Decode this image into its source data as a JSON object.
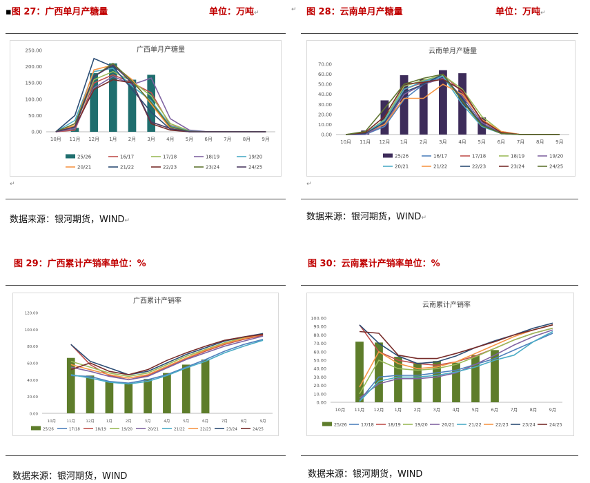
{
  "figures": [
    {
      "fig_label": "图 27：广西单月产糖量",
      "unit": "单位：万吨",
      "source": "数据来源：银河期货，WIND"
    },
    {
      "fig_label": "图 28：云南单月产糖量",
      "unit": "单位：万吨",
      "source": "数据来源：银河期货，WIND"
    },
    {
      "fig_label": "图 29：广西累计产销率单位：%",
      "unit": "",
      "source": "数据来源：银河期货，WIND"
    },
    {
      "fig_label": "图 30：云南累计产销率单位：%",
      "unit": "",
      "source": "数据来源：银河期货，WIND"
    }
  ],
  "chart_data": [
    {
      "type": "bar",
      "title": "广西单月产糖量",
      "categories": [
        "10月",
        "11月",
        "12月",
        "1月",
        "2月",
        "3月",
        "4月",
        "5月",
        "6月",
        "7月",
        "8月",
        "9月"
      ],
      "ylim": [
        0,
        250
      ],
      "yticks": [
        "0.00",
        "50.00",
        "100.00",
        "150.00",
        "200.00",
        "250.00"
      ],
      "bar_series": {
        "name": "25/26",
        "color": "#1f6e6e",
        "values": [
          0,
          12,
          180,
          210,
          160,
          175,
          null,
          null,
          null,
          null,
          null,
          null
        ]
      },
      "line_series": [
        {
          "name": "16/17",
          "color": "#c0504d",
          "values": [
            0,
            5,
            150,
            175,
            150,
            120,
            20,
            2,
            0,
            0,
            0,
            0
          ]
        },
        {
          "name": "17/18",
          "color": "#9bbb59",
          "values": [
            0,
            18,
            160,
            185,
            155,
            110,
            25,
            3,
            0,
            0,
            0,
            0
          ]
        },
        {
          "name": "18/19",
          "color": "#8064a2",
          "values": [
            0,
            10,
            135,
            170,
            145,
            165,
            40,
            5,
            0,
            0,
            0,
            0
          ]
        },
        {
          "name": "19/20",
          "color": "#4bacc6",
          "values": [
            0,
            35,
            185,
            195,
            140,
            95,
            18,
            2,
            0,
            0,
            0,
            0
          ]
        },
        {
          "name": "20/21",
          "color": "#f79646",
          "values": [
            0,
            20,
            190,
            205,
            160,
            85,
            10,
            1,
            0,
            0,
            0,
            0
          ]
        },
        {
          "name": "21/22",
          "color": "#2c4d75",
          "values": [
            0,
            50,
            225,
            200,
            130,
            60,
            8,
            0,
            0,
            0,
            0,
            0
          ]
        },
        {
          "name": "22/23",
          "color": "#772c2a",
          "values": [
            0,
            15,
            130,
            160,
            150,
            25,
            5,
            0,
            0,
            0,
            0,
            0
          ]
        },
        {
          "name": "23/24",
          "color": "#5f7530",
          "values": [
            0,
            25,
            170,
            210,
            155,
            90,
            15,
            1,
            0,
            0,
            0,
            0
          ]
        },
        {
          "name": "24/25",
          "color": "#4d3b62",
          "values": [
            0,
            15,
            170,
            205,
            150,
            30,
            10,
            0,
            0,
            0,
            0,
            0
          ]
        }
      ]
    },
    {
      "type": "bar",
      "title": "云南单月产糖量",
      "categories": [
        "10月",
        "11月",
        "12月",
        "1月",
        "2月",
        "3月",
        "4月",
        "5月",
        "6月",
        "7月",
        "8月",
        "9月"
      ],
      "ylim": [
        0,
        70
      ],
      "yticks": [
        "0.00",
        "10.00",
        "20.00",
        "30.00",
        "40.00",
        "50.00",
        "60.00",
        "70.00"
      ],
      "bar_series": {
        "name": "25/26",
        "color": "#3d2c5a",
        "values": [
          0,
          4,
          34,
          59,
          55,
          64,
          61,
          17,
          null,
          null,
          null,
          null
        ]
      },
      "line_series": [
        {
          "name": "16/17",
          "color": "#4f81bd",
          "values": [
            0,
            0,
            8,
            35,
            50,
            58,
            35,
            10,
            1,
            0,
            0,
            0
          ]
        },
        {
          "name": "17/18",
          "color": "#c0504d",
          "values": [
            0,
            1,
            12,
            45,
            52,
            60,
            42,
            14,
            2,
            0,
            0,
            0
          ]
        },
        {
          "name": "18/19",
          "color": "#9bbb59",
          "values": [
            0,
            1,
            15,
            48,
            54,
            59,
            45,
            18,
            3,
            0,
            0,
            0
          ]
        },
        {
          "name": "19/20",
          "color": "#8064a2",
          "values": [
            0,
            0,
            10,
            40,
            50,
            56,
            38,
            12,
            1,
            0,
            0,
            0
          ]
        },
        {
          "name": "20/21",
          "color": "#4bacc6",
          "values": [
            0,
            1,
            14,
            45,
            53,
            58,
            30,
            8,
            1,
            0,
            0,
            0
          ]
        },
        {
          "name": "21/22",
          "color": "#f79646",
          "values": [
            0,
            2,
            10,
            36,
            36,
            50,
            40,
            15,
            3,
            0,
            0,
            0
          ]
        },
        {
          "name": "22/23",
          "color": "#2c4d75",
          "values": [
            0,
            1,
            12,
            42,
            50,
            60,
            35,
            10,
            1,
            0,
            0,
            0
          ]
        },
        {
          "name": "23/24",
          "color": "#772c2a",
          "values": [
            0,
            2,
            18,
            50,
            52,
            55,
            44,
            14,
            2,
            0,
            0,
            0
          ]
        },
        {
          "name": "24/25",
          "color": "#5f7530",
          "values": [
            0,
            3,
            26,
            50,
            56,
            60,
            33,
            9,
            1,
            0,
            0,
            0
          ]
        }
      ]
    },
    {
      "type": "bar",
      "title": "广西累计产销率",
      "categories": [
        "10月",
        "11月",
        "12月",
        "1月",
        "2月",
        "3月",
        "4月",
        "5月",
        "6月",
        "7月",
        "8月",
        "9月"
      ],
      "ylim": [
        0,
        120
      ],
      "yticks": [
        "0.00",
        "20.00",
        "40.00",
        "60.00",
        "80.00",
        "100.00",
        "120.00"
      ],
      "bar_series": {
        "name": "25/26",
        "color": "#5e7d2b",
        "values": [
          null,
          66,
          45,
          38,
          35,
          41,
          48,
          58,
          64,
          null,
          null,
          null
        ]
      },
      "line_series": [
        {
          "name": "17/18",
          "color": "#4f81bd",
          "values": [
            null,
            45,
            44,
            38,
            36,
            40,
            46,
            55,
            64,
            74,
            82,
            88
          ]
        },
        {
          "name": "18/19",
          "color": "#c0504d",
          "values": [
            null,
            82,
            58,
            45,
            40,
            45,
            55,
            65,
            74,
            82,
            88,
            93
          ]
        },
        {
          "name": "19/20",
          "color": "#9bbb59",
          "values": [
            null,
            62,
            55,
            48,
            44,
            48,
            58,
            68,
            76,
            84,
            90,
            95
          ]
        },
        {
          "name": "20/21",
          "color": "#8064a2",
          "values": [
            null,
            55,
            50,
            44,
            40,
            44,
            54,
            64,
            72,
            80,
            86,
            92
          ]
        },
        {
          "name": "21/22",
          "color": "#4bacc6",
          "values": [
            null,
            46,
            42,
            37,
            35,
            38,
            45,
            54,
            62,
            72,
            80,
            87
          ]
        },
        {
          "name": "22/23",
          "color": "#f79646",
          "values": [
            null,
            58,
            52,
            46,
            42,
            46,
            56,
            66,
            75,
            83,
            89,
            94
          ]
        },
        {
          "name": "23/24",
          "color": "#2c4d75",
          "values": [
            null,
            82,
            62,
            54,
            46,
            50,
            60,
            70,
            78,
            86,
            91,
            95
          ]
        },
        {
          "name": "24/25",
          "color": "#772c2a",
          "values": [
            null,
            52,
            60,
            50,
            46,
            52,
            63,
            72,
            80,
            87,
            91,
            94
          ]
        }
      ]
    },
    {
      "type": "bar",
      "title": "云南累计产销率",
      "categories": [
        "10月",
        "11月",
        "12月",
        "1月",
        "2月",
        "3月",
        "4月",
        "5月",
        "6月",
        "7月",
        "8月",
        "9月"
      ],
      "ylim": [
        0,
        100
      ],
      "yticks": [
        "0.00",
        "10.00",
        "20.00",
        "30.00",
        "40.00",
        "50.00",
        "60.00",
        "70.00",
        "80.00",
        "90.00",
        "100.00"
      ],
      "bar_series": {
        "name": "25/26",
        "color": "#5e7d2b",
        "values": [
          null,
          72,
          71,
          54,
          47,
          49,
          47,
          56,
          62,
          null,
          null,
          null
        ]
      },
      "line_series": [
        {
          "name": "17/18",
          "color": "#4f81bd",
          "values": [
            null,
            2,
            30,
            32,
            32,
            35,
            38,
            45,
            52,
            62,
            72,
            82
          ]
        },
        {
          "name": "18/19",
          "color": "#c0504d",
          "values": [
            null,
            92,
            60,
            50,
            46,
            44,
            48,
            55,
            64,
            74,
            82,
            88
          ]
        },
        {
          "name": "19/20",
          "color": "#9bbb59",
          "values": [
            null,
            10,
            50,
            40,
            38,
            40,
            45,
            54,
            64,
            74,
            82,
            88
          ]
        },
        {
          "name": "20/21",
          "color": "#8064a2",
          "values": [
            null,
            5,
            22,
            28,
            28,
            30,
            35,
            45,
            56,
            68,
            78,
            86
          ]
        },
        {
          "name": "21/22",
          "color": "#4bacc6",
          "values": [
            null,
            1,
            25,
            30,
            30,
            32,
            36,
            42,
            50,
            56,
            72,
            84
          ]
        },
        {
          "name": "22/23",
          "color": "#f79646",
          "values": [
            null,
            18,
            60,
            46,
            40,
            42,
            48,
            58,
            68,
            78,
            86,
            92
          ]
        },
        {
          "name": "23/24",
          "color": "#2c4d75",
          "values": [
            null,
            92,
            70,
            55,
            46,
            48,
            55,
            65,
            73,
            80,
            88,
            94
          ]
        },
        {
          "name": "24/25",
          "color": "#772c2a",
          "values": [
            null,
            84,
            82,
            56,
            52,
            52,
            58,
            65,
            72,
            80,
            86,
            92
          ]
        }
      ]
    }
  ]
}
